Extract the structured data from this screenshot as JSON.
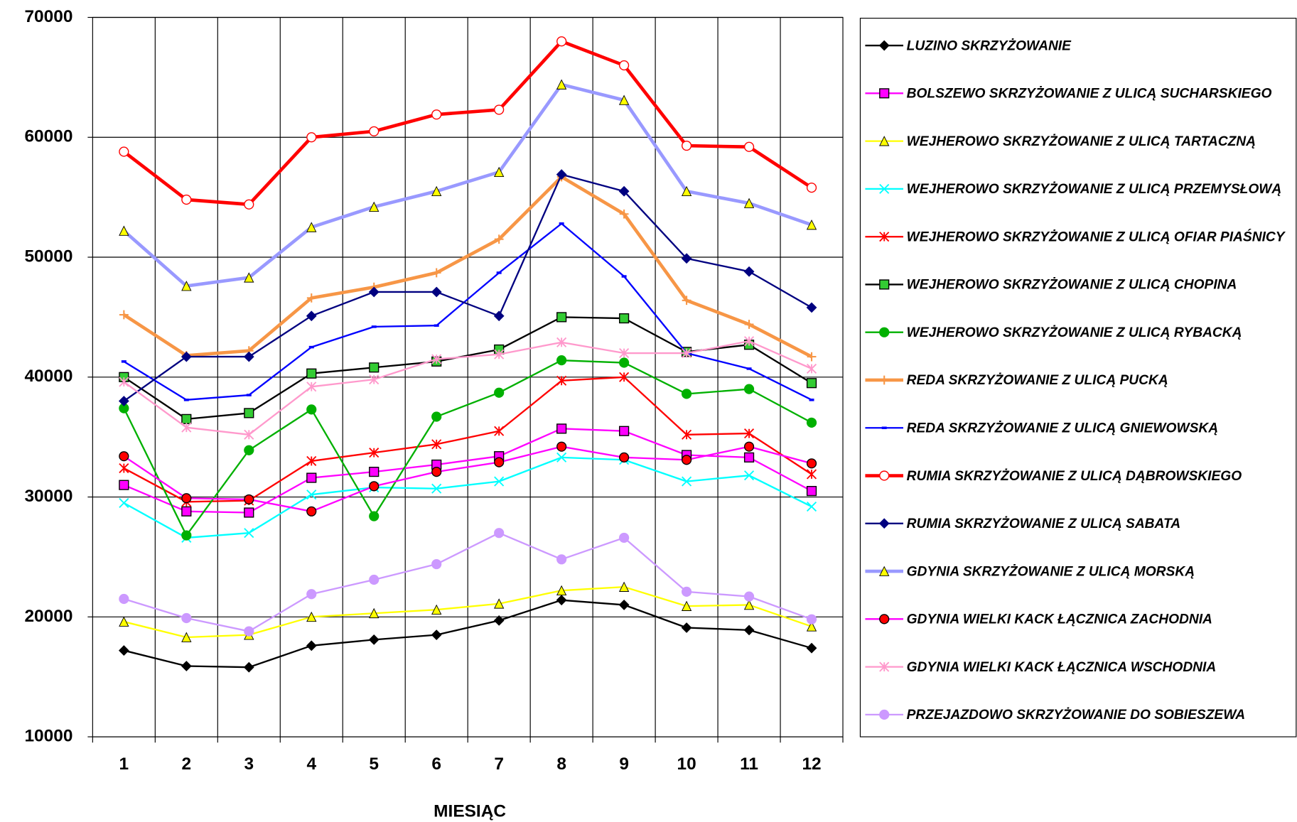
{
  "chart_data": {
    "type": "line",
    "x_label": "MIESIĄC",
    "categories": [
      "1",
      "2",
      "3",
      "4",
      "5",
      "6",
      "7",
      "8",
      "9",
      "10",
      "11",
      "12"
    ],
    "ylim": [
      10000,
      70000
    ],
    "yticks": [
      10000,
      20000,
      30000,
      40000,
      50000,
      60000,
      70000
    ],
    "grid": true,
    "legend": "right",
    "series": [
      {
        "name": "LUZINO SKRZYŻOWANIE",
        "color": "#000000",
        "marker": "diamond",
        "marker_color": "#000000",
        "width": 2,
        "values": [
          17200,
          15900,
          15800,
          17600,
          18100,
          18500,
          19700,
          21400,
          21000,
          19100,
          18900,
          17400
        ]
      },
      {
        "name": "BOLSZEWO SKRZYŻOWANIE Z ULICĄ SUCHARSKIEGO",
        "color": "#ff00ff",
        "marker": "square",
        "marker_color": "#ff00ff",
        "width": 2,
        "values": [
          31000,
          28800,
          28700,
          31600,
          32100,
          32700,
          33400,
          35700,
          35500,
          33500,
          33300,
          30500
        ]
      },
      {
        "name": "WEJHEROWO SKRZYŻOWANIE Z ULICĄ TARTACZNĄ",
        "color": "#ffff00",
        "marker": "triangle",
        "marker_color": "#ffff00",
        "width": 2,
        "values": [
          19600,
          18300,
          18500,
          20000,
          20300,
          20600,
          21100,
          22200,
          22500,
          20900,
          21000,
          19200
        ]
      },
      {
        "name": "WEJHEROWO SKRZYŻOWANIE Z ULICĄ PRZEMYSŁOWĄ",
        "color": "#00ffff",
        "marker": "x",
        "marker_color": "#00ffff",
        "width": 2,
        "values": [
          29500,
          26600,
          27000,
          30200,
          30800,
          30700,
          31300,
          33300,
          33100,
          31300,
          31800,
          29200
        ]
      },
      {
        "name": "WEJHEROWO SKRZYŻOWANIE Z ULICĄ OFIAR PIAŚNICY",
        "color": "#ff0000",
        "marker": "star",
        "marker_color": "#ff0000",
        "width": 2,
        "values": [
          32400,
          29600,
          29700,
          33000,
          33700,
          34400,
          35500,
          39700,
          40000,
          35200,
          35300,
          31900
        ]
      },
      {
        "name": "WEJHEROWO SKRZYŻOWANIE Z ULICĄ CHOPINA",
        "color": "#000000",
        "marker": "square",
        "marker_color": "#33cc33",
        "width": 2,
        "values": [
          40000,
          36500,
          37000,
          40300,
          40800,
          41300,
          42300,
          45000,
          44900,
          42100,
          42700,
          39500
        ]
      },
      {
        "name": "WEJHEROWO SKRZYŻOWANIE Z ULICĄ RYBACKĄ",
        "color": "#00b000",
        "marker": "circle",
        "marker_color": "#00b000",
        "width": 2,
        "values": [
          37400,
          26800,
          33900,
          37300,
          28400,
          36700,
          38700,
          41400,
          41200,
          38600,
          39000,
          36200
        ]
      },
      {
        "name": "REDA SKRZYŻOWANIE Z ULICĄ PUCKĄ",
        "color": "#f79646",
        "marker": "plus",
        "marker_color": "#f79646",
        "width": 4,
        "values": [
          45200,
          41800,
          42200,
          46600,
          47500,
          48700,
          51500,
          56700,
          53600,
          46400,
          44400,
          41700
        ]
      },
      {
        "name": "REDA SKRZYŻOWANIE Z ULICĄ GNIEWOWSKĄ",
        "color": "#0000ff",
        "marker": "dash",
        "marker_color": "#0000ff",
        "width": 2,
        "values": [
          41300,
          38100,
          38500,
          42500,
          44200,
          44300,
          48700,
          52800,
          48400,
          42000,
          40700,
          38100
        ]
      },
      {
        "name": "RUMIA SKRZYŻOWANIE Z ULICĄ DĄBROWSKIEGO",
        "color": "#ff0000",
        "marker": "circle",
        "marker_color": "#ffffff",
        "width": 4,
        "values": [
          58800,
          54800,
          54400,
          60000,
          60500,
          61900,
          62300,
          68000,
          66000,
          59300,
          59200,
          55800
        ]
      },
      {
        "name": "RUMIA SKRZYŻOWANIE Z ULICĄ SABATA",
        "color": "#000080",
        "marker": "diamond",
        "marker_color": "#000080",
        "width": 2,
        "values": [
          38000,
          41700,
          41700,
          45100,
          47100,
          47100,
          45100,
          56900,
          55500,
          49900,
          48800,
          45800
        ]
      },
      {
        "name": "GDYNIA SKRZYŻOWANIE Z ULICĄ MORSKĄ",
        "color": "#9999ff",
        "marker": "triangle",
        "marker_color": "#ffff00",
        "width": 4,
        "values": [
          52200,
          47600,
          48300,
          52500,
          54200,
          55500,
          57100,
          64400,
          63100,
          55500,
          54500,
          52700
        ]
      },
      {
        "name": "GDYNIA WIELKI KACK ŁĄCZNICA ZACHODNIA",
        "color": "#ff00ff",
        "marker": "circle",
        "marker_color": "#ff0000",
        "width": 2,
        "values": [
          33400,
          29900,
          29800,
          28800,
          30900,
          32100,
          32900,
          34200,
          33300,
          33100,
          34200,
          32800
        ]
      },
      {
        "name": "GDYNIA WIELKI KACK ŁĄCZNICA WSCHODNIA",
        "color": "#ff99cc",
        "marker": "star",
        "marker_color": "#ff99cc",
        "width": 2,
        "values": [
          39600,
          35800,
          35200,
          39200,
          39800,
          41500,
          41900,
          42900,
          42000,
          42000,
          43000,
          40700
        ]
      },
      {
        "name": "PRZEJAZDOWO SKRZYŻOWANIE DO SOBIESZEWA",
        "color": "#cc99ff",
        "marker": "circle",
        "marker_color": "#cc99ff",
        "width": 2,
        "values": [
          21500,
          19900,
          18800,
          21900,
          23100,
          24400,
          27000,
          24800,
          26600,
          22100,
          21700,
          19800
        ]
      }
    ]
  }
}
